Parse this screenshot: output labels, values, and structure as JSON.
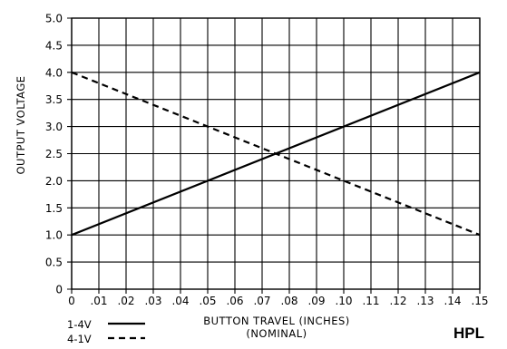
{
  "chart_data": {
    "type": "line",
    "xlabel": "BUTTON TRAVEL (INCHES)",
    "xlabel_sub": "(NOMINAL)",
    "ylabel": "OUTPUT VOLTAGE",
    "xlim": [
      0,
      0.15
    ],
    "ylim": [
      0,
      5.0
    ],
    "grid": true,
    "x_tick_labels": [
      "0",
      ".01",
      ".02",
      ".03",
      ".04",
      ".05",
      ".06",
      ".07",
      ".08",
      ".09",
      ".10",
      ".11",
      ".12",
      ".13",
      ".14",
      ".15"
    ],
    "y_tick_labels": [
      "0",
      "0.5",
      "1.0",
      "1.5",
      "2.0",
      "2.5",
      "3.0",
      "3.5",
      "4.0",
      "4.5",
      "5.0"
    ],
    "series": [
      {
        "name": "1-4V",
        "style": "solid",
        "x": [
          0,
          0.15
        ],
        "y": [
          1.0,
          4.0
        ]
      },
      {
        "name": "4-1V",
        "style": "dashed",
        "x": [
          0,
          0.15
        ],
        "y": [
          4.0,
          1.0
        ]
      }
    ],
    "legend_placement": "bottom-left"
  },
  "brand": "HPL"
}
